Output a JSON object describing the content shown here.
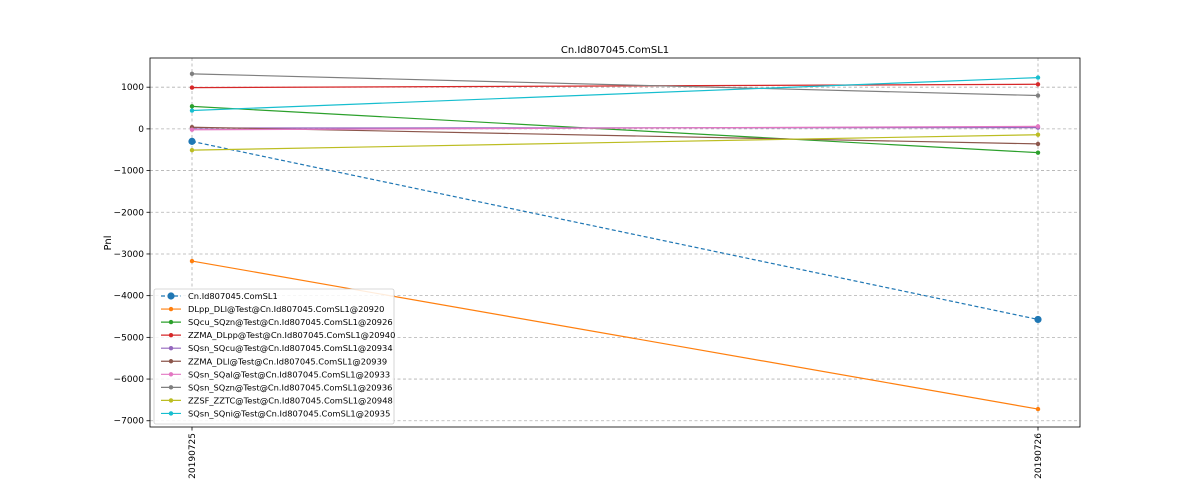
{
  "chart_data": {
    "type": "line",
    "title": "Cn.Id807045.ComSL1",
    "xlabel": "",
    "ylabel": "Pnl",
    "categories": [
      "20190725",
      "20190726"
    ],
    "ylim": [
      -7150,
      1700
    ],
    "yticks": [
      1000,
      0,
      -1000,
      -2000,
      -3000,
      -4000,
      -5000,
      -6000,
      -7000
    ],
    "ytick_labels": [
      "1000",
      "0",
      "−1000",
      "−2000",
      "−3000",
      "−4000",
      "−5000",
      "−6000",
      "−7000"
    ],
    "grid": true,
    "legend_position": "lower-left",
    "series": [
      {
        "name": "Cn.Id807045.ComSL1",
        "values": [
          -300,
          -4570
        ],
        "color": "#1f77b4",
        "dashed": true,
        "big_marker": true
      },
      {
        "name": "DLpp_DLl@Test@Cn.Id807045.ComSL1@20920",
        "values": [
          -3170,
          -6720
        ],
        "color": "#ff7f0e"
      },
      {
        "name": "SQcu_SQzn@Test@Cn.Id807045.ComSL1@20926",
        "values": [
          540,
          -570
        ],
        "color": "#2ca02c"
      },
      {
        "name": "ZZMA_DLpp@Test@Cn.Id807045.ComSL1@20940",
        "values": [
          990,
          1070
        ],
        "color": "#d62728"
      },
      {
        "name": "SQsn_SQcu@Test@Cn.Id807045.ComSL1@20934",
        "values": [
          20,
          30
        ],
        "color": "#9467bd"
      },
      {
        "name": "ZZMA_DLl@Test@Cn.Id807045.ComSL1@20939",
        "values": [
          40,
          -360
        ],
        "color": "#8c564b"
      },
      {
        "name": "SQsn_SQal@Test@Cn.Id807045.ComSL1@20933",
        "values": [
          -20,
          60
        ],
        "color": "#e377c2"
      },
      {
        "name": "SQsn_SQzn@Test@Cn.Id807045.ComSL1@20936",
        "values": [
          1320,
          800
        ],
        "color": "#7f7f7f"
      },
      {
        "name": "ZZSF_ZZTC@Test@Cn.Id807045.ComSL1@20948",
        "values": [
          -510,
          -140
        ],
        "color": "#bcbd22"
      },
      {
        "name": "SQsn_SQni@Test@Cn.Id807045.ComSL1@20935",
        "values": [
          440,
          1230
        ],
        "color": "#17becf"
      }
    ]
  }
}
